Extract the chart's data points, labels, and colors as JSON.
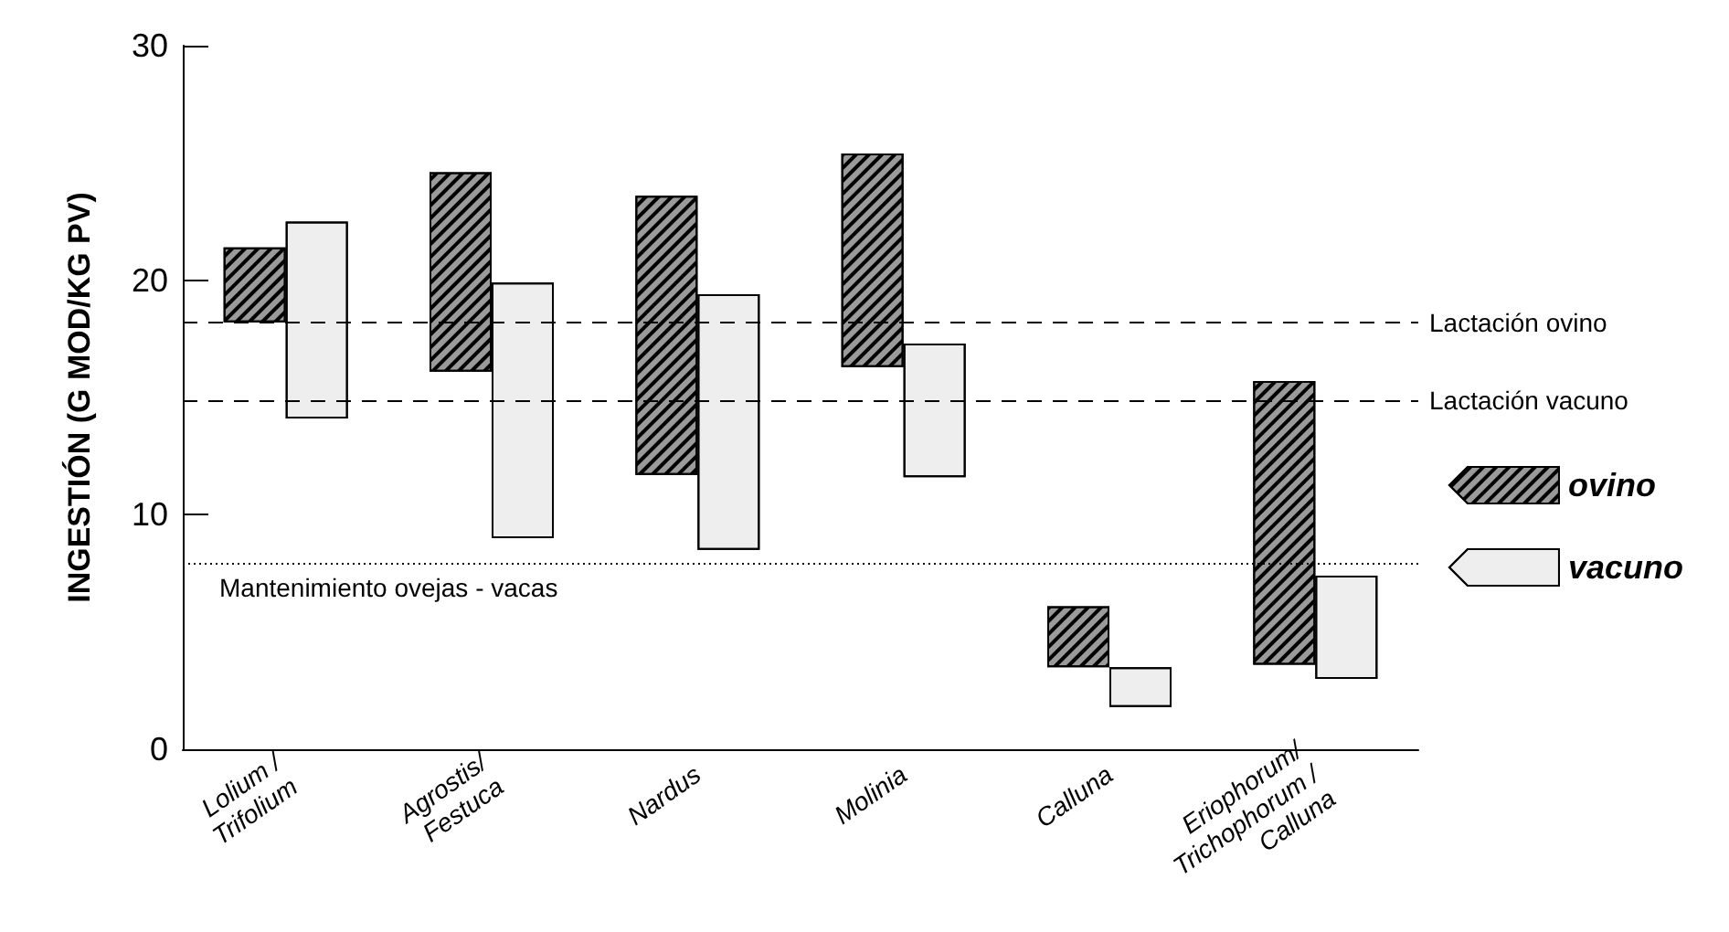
{
  "chart_data": {
    "type": "bar",
    "ylabel": "INGESTIÓN (G MOD/KG PV)",
    "categories": [
      "Lolium /\nTrifolium",
      "Agrostis/\nFestuca",
      "Nardus",
      "Molinia",
      "Calluna",
      "Eriophorum/\nTrichophorum /\nCalluna"
    ],
    "series": [
      {
        "name": "ovino",
        "color": "#9a9a9a",
        "base": [
          18.2,
          16.1,
          11.7,
          16.3,
          3.5,
          3.6
        ],
        "values": [
          3.2,
          8.5,
          11.9,
          9.1,
          2.6,
          12.1
        ]
      },
      {
        "name": "vacuno",
        "color": "#eeeeee",
        "base": [
          14.1,
          9.0,
          8.5,
          11.6,
          1.8,
          3.0
        ],
        "values": [
          8.4,
          10.9,
          10.9,
          5.7,
          1.7,
          4.4
        ]
      }
    ],
    "ylim": [
      0,
      30
    ],
    "yticks": [
      0,
      10,
      20,
      30
    ],
    "ref_lines": [
      {
        "axis": "y",
        "value": 18.2,
        "label": "Lactación ovino",
        "line_style": "dashed"
      },
      {
        "axis": "y",
        "value": 14.9,
        "label": "Lactación vacuno",
        "line_style": "dashed"
      },
      {
        "axis": "y",
        "value": 7.9,
        "label": "Mantenimiento ovejas - vacas",
        "line_style": "dotted"
      }
    ],
    "grid": false,
    "legend": "right"
  }
}
